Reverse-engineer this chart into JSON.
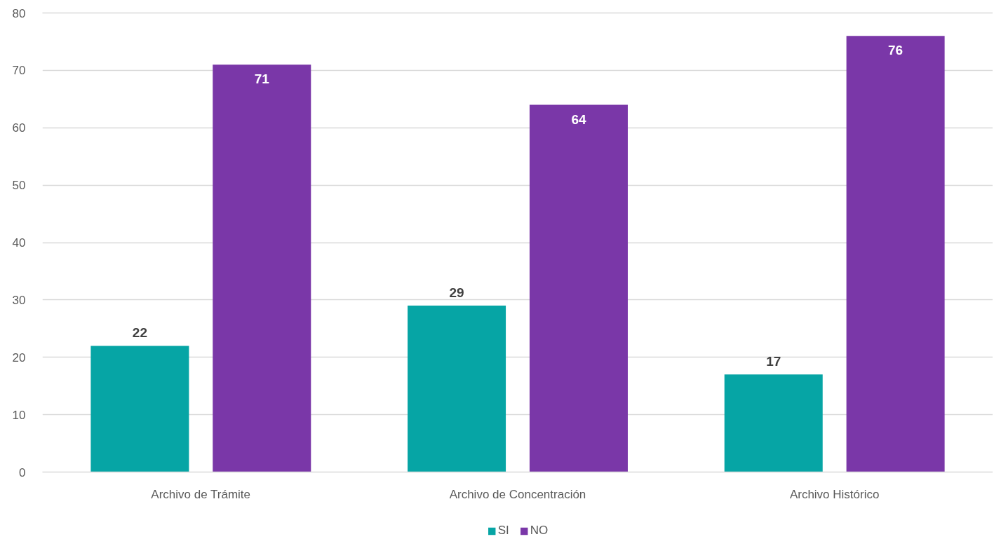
{
  "chart_data": {
    "type": "bar",
    "categories": [
      "Archivo de Trámite",
      "Archivo de Concentración",
      "Archivo Histórico"
    ],
    "series": [
      {
        "name": "SI",
        "color": "#06a5a5",
        "values": [
          22,
          29,
          17
        ]
      },
      {
        "name": "NO",
        "color": "#7a37a8",
        "values": [
          71,
          64,
          76
        ]
      }
    ],
    "ylim": [
      0,
      80
    ],
    "yticks": [
      0,
      10,
      20,
      30,
      40,
      50,
      60,
      70,
      80
    ],
    "grid": "y",
    "legend": "bottom",
    "data_labels": true
  }
}
